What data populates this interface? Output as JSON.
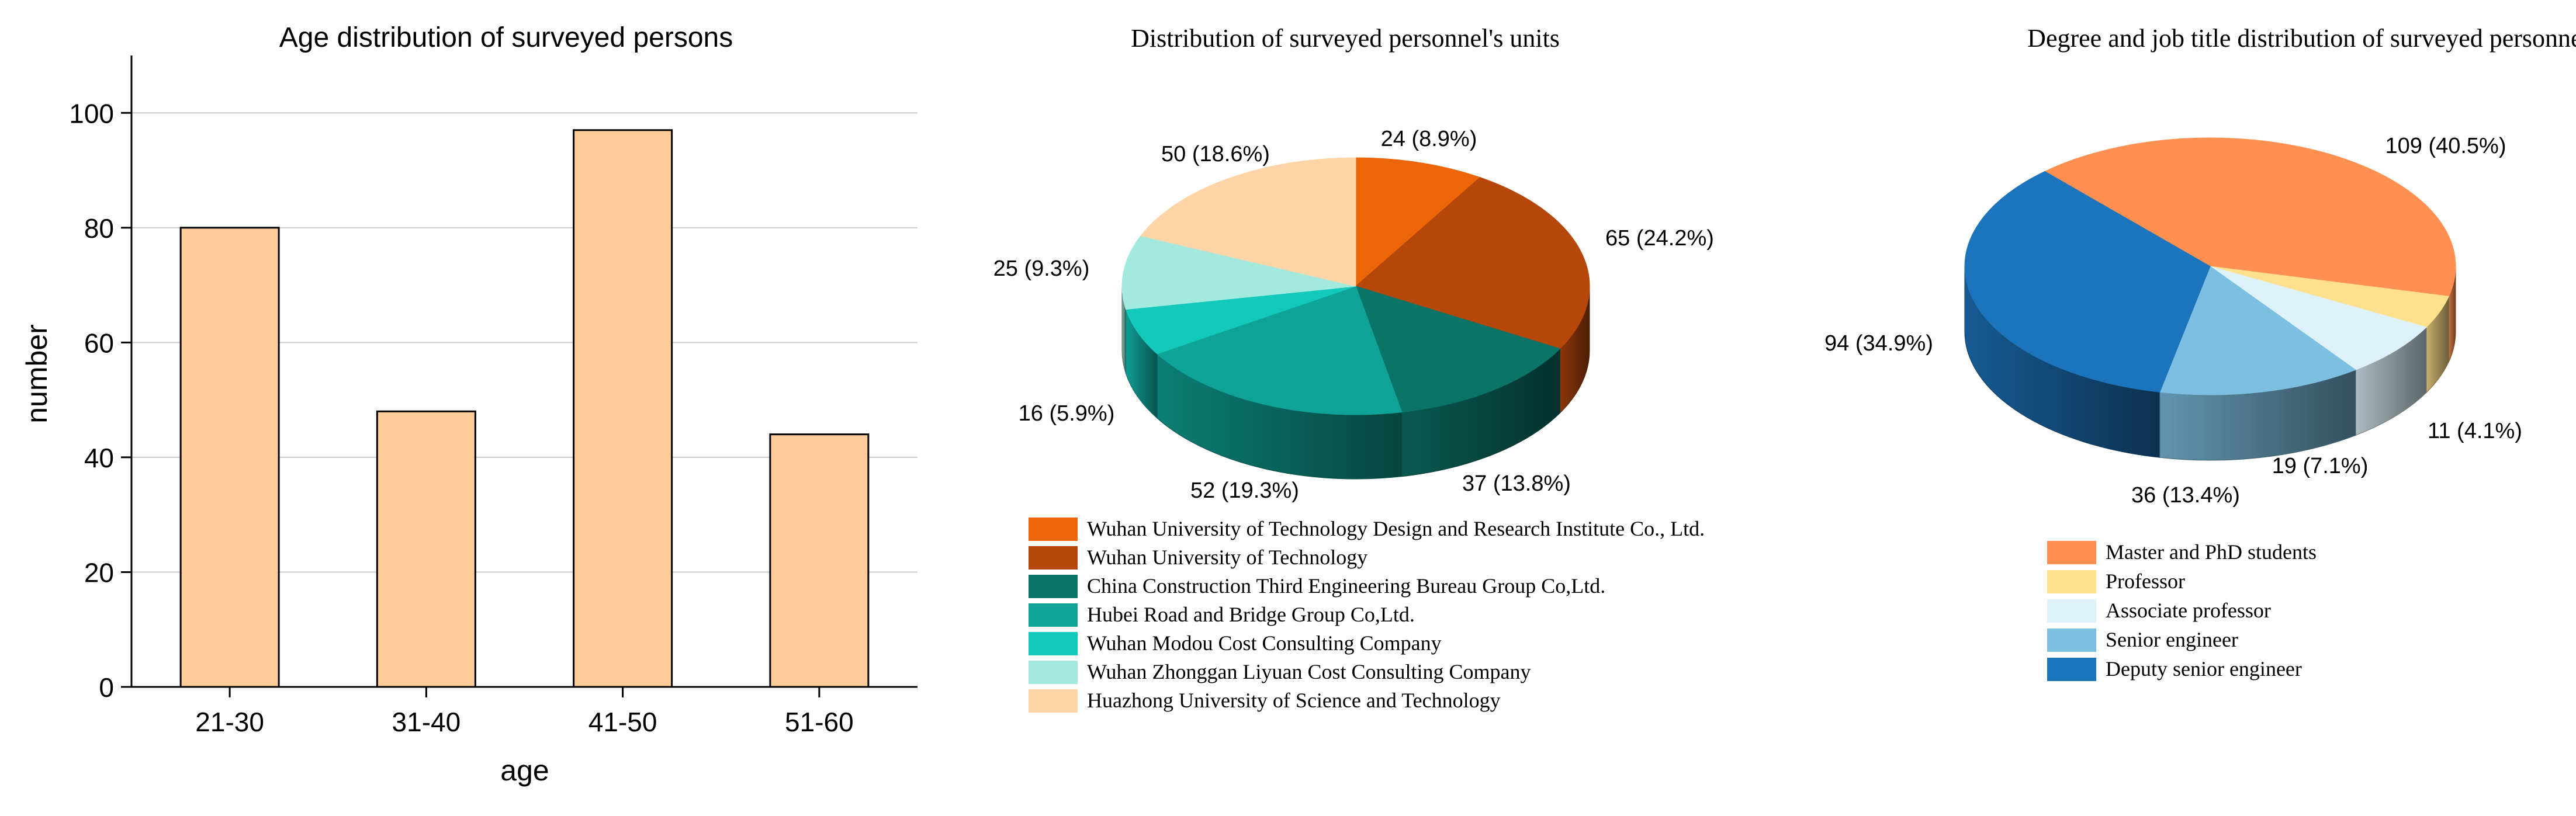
{
  "chart_data": [
    {
      "type": "bar",
      "title": "Age distribution of surveyed persons",
      "xlabel": "age",
      "ylabel": "number",
      "categories": [
        "21-30",
        "31-40",
        "41-50",
        "51-60"
      ],
      "values": [
        80,
        48,
        97,
        44
      ],
      "ylim": [
        0,
        110
      ],
      "yticks": [
        0,
        20,
        40,
        60,
        80,
        100
      ],
      "grid": true,
      "bar_color": "#FFCC99",
      "edge_color": "#000000"
    },
    {
      "type": "pie",
      "title": "Distribution of surveyed personnel's units",
      "slices": [
        {
          "label": "Wuhan University of Technology Design and Research Institute Co., Ltd.",
          "value": 24,
          "display": "24 (8.9%)",
          "color": "#EC6608"
        },
        {
          "label": "Wuhan University of Technology",
          "value": 65,
          "display": "65 (24.2%)",
          "color": "#B5470B"
        },
        {
          "label": "China Construction Third Engineering Bureau Group Co,Ltd.",
          "value": 37,
          "display": "37 (13.8%)",
          "color": "#0A7468"
        },
        {
          "label": "Hubei Road and Bridge Group Co,Ltd.",
          "value": 52,
          "display": "52 (19.3%)",
          "color": "#0EA396"
        },
        {
          "label": "Wuhan Modou Cost Consulting Company",
          "value": 16,
          "display": "16 (5.9%)",
          "color": "#13C9BC"
        },
        {
          "label": "Wuhan Zhonggan Liyuan Cost Consulting Company",
          "value": 25,
          "display": "25 (9.3%)",
          "color": "#A3E9DD"
        },
        {
          "label": "Huazhong University of Science and Technology",
          "value": 50,
          "display": "50 (18.6%)",
          "color": "#FFD5A8"
        }
      ]
    },
    {
      "type": "pie",
      "title": "Degree and job title distribution of surveyed personnel",
      "slices": [
        {
          "label": "Master and PhD students",
          "value": 109,
          "display": "109 (40.5%)",
          "color": "#FF9052"
        },
        {
          "label": "Professor",
          "value": 11,
          "display": "11 (4.1%)",
          "color": "#FFE08C"
        },
        {
          "label": "Associate professor",
          "value": 19,
          "display": "19 (7.1%)",
          "color": "#DDF1F8"
        },
        {
          "label": "Senior engineer",
          "value": 36,
          "display": "36 (13.4%)",
          "color": "#7CBFE0"
        },
        {
          "label": "Deputy senior engineer",
          "value": 94,
          "display": "94 (34.9%)",
          "color": "#1C75BC"
        }
      ]
    }
  ]
}
